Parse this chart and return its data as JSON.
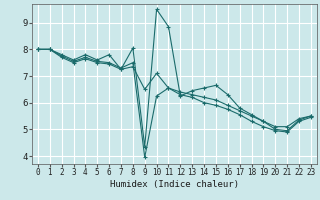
{
  "xlabel": "Humidex (Indice chaleur)",
  "background_color": "#cce8ea",
  "grid_color": "#ffffff",
  "line_color": "#1a6b6b",
  "xlim": [
    -0.5,
    23.5
  ],
  "ylim": [
    3.7,
    9.7
  ],
  "yticks": [
    4,
    5,
    6,
    7,
    8,
    9
  ],
  "xticks": [
    0,
    1,
    2,
    3,
    4,
    5,
    6,
    7,
    8,
    9,
    10,
    11,
    12,
    13,
    14,
    15,
    16,
    17,
    18,
    19,
    20,
    21,
    22,
    23
  ],
  "lines": [
    {
      "x": [
        0,
        1,
        2,
        3,
        4,
        5,
        6,
        7,
        8,
        9,
        10,
        11,
        12,
        13,
        14,
        15,
        16,
        17,
        18,
        19,
        20,
        21,
        22,
        23
      ],
      "y": [
        8.0,
        8.0,
        7.8,
        7.6,
        7.8,
        7.6,
        7.8,
        7.25,
        8.05,
        4.35,
        9.5,
        8.85,
        6.25,
        6.45,
        6.55,
        6.65,
        6.3,
        5.8,
        5.55,
        5.3,
        5.1,
        5.1,
        5.4,
        5.5
      ]
    },
    {
      "x": [
        0,
        1,
        2,
        3,
        4,
        5,
        6,
        7,
        8,
        9,
        10,
        11,
        12,
        13,
        14,
        15,
        16,
        17,
        18,
        19,
        20,
        21,
        22,
        23
      ],
      "y": [
        8.0,
        8.0,
        7.75,
        7.55,
        7.7,
        7.55,
        7.5,
        7.3,
        7.5,
        3.95,
        6.25,
        6.55,
        6.4,
        6.3,
        6.2,
        6.1,
        5.9,
        5.7,
        5.5,
        5.3,
        5.0,
        4.95,
        5.35,
        5.5
      ]
    },
    {
      "x": [
        0,
        1,
        2,
        3,
        4,
        5,
        6,
        7,
        8,
        9,
        10,
        11,
        12,
        13,
        14,
        15,
        16,
        17,
        18,
        19,
        20,
        21,
        22,
        23
      ],
      "y": [
        8.0,
        8.0,
        7.7,
        7.5,
        7.65,
        7.5,
        7.45,
        7.25,
        7.35,
        6.5,
        7.1,
        6.55,
        6.3,
        6.2,
        6.0,
        5.9,
        5.75,
        5.55,
        5.3,
        5.1,
        4.95,
        4.9,
        5.3,
        5.45
      ]
    }
  ]
}
